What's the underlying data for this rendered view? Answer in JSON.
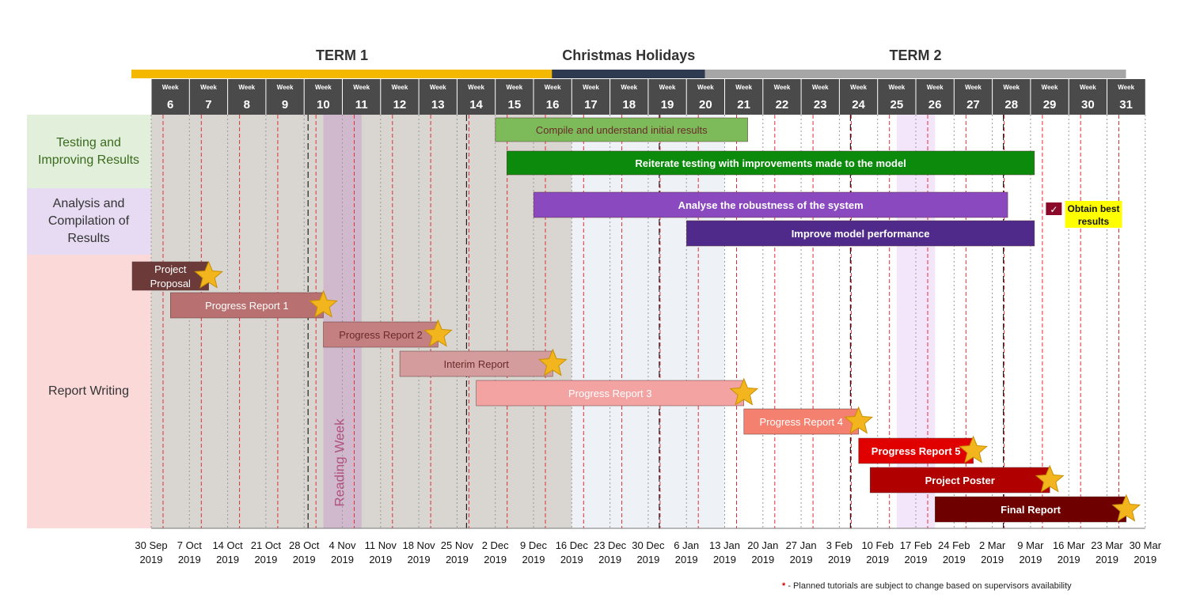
{
  "terms": [
    {
      "name": "TERM 1",
      "color": "#f5b800",
      "start": 6,
      "end": 16
    },
    {
      "name": "Christmas Holidays",
      "color": "#2e3a4f",
      "start": 17,
      "end": 20
    },
    {
      "name": "TERM 2",
      "color": "#a6a6a6",
      "start": 21,
      "end": 31
    }
  ],
  "week_prefix": "Week",
  "weeks": [
    6,
    7,
    8,
    9,
    10,
    11,
    12,
    13,
    14,
    15,
    16,
    17,
    18,
    19,
    20,
    21,
    22,
    23,
    24,
    25,
    26,
    27,
    28,
    29,
    30,
    31
  ],
  "date_ticks": [
    {
      "date": "30 Sep",
      "year": "2019"
    },
    {
      "date": "7 Oct",
      "year": "2019"
    },
    {
      "date": "14 Oct",
      "year": "2019"
    },
    {
      "date": "21 Oct",
      "year": "2019"
    },
    {
      "date": "28 Oct",
      "year": "2019"
    },
    {
      "date": "4 Nov",
      "year": "2019"
    },
    {
      "date": "11 Nov",
      "year": "2019"
    },
    {
      "date": "18 Nov",
      "year": "2019"
    },
    {
      "date": "25 Nov",
      "year": "2019"
    },
    {
      "date": "2 Dec",
      "year": "2019"
    },
    {
      "date": "9 Dec",
      "year": "2019"
    },
    {
      "date": "16 Dec",
      "year": "2019"
    },
    {
      "date": "23 Dec",
      "year": "2019"
    },
    {
      "date": "30 Dec",
      "year": "2019"
    },
    {
      "date": "6 Jan",
      "year": "2019"
    },
    {
      "date": "13 Jan",
      "year": "2019"
    },
    {
      "date": "20 Jan",
      "year": "2019"
    },
    {
      "date": "27 Jan",
      "year": "2019"
    },
    {
      "date": "3 Feb",
      "year": "2019"
    },
    {
      "date": "10 Feb",
      "year": "2019"
    },
    {
      "date": "17 Feb",
      "year": "2019"
    },
    {
      "date": "24 Feb",
      "year": "2019"
    },
    {
      "date": "2 Mar",
      "year": "2019"
    },
    {
      "date": "9 Mar",
      "year": "2019"
    },
    {
      "date": "16 Mar",
      "year": "2019"
    },
    {
      "date": "23 Mar",
      "year": "2019"
    },
    {
      "date": "30 Mar",
      "year": "2019"
    }
  ],
  "categories": [
    {
      "name": "Testing and Improving Results",
      "bg": "#e2efda",
      "color": "#3a6b1e"
    },
    {
      "name": "Analysis and Compilation of Results",
      "bg": "#e6dbf2",
      "color": "#333333"
    },
    {
      "name": "Report Writing",
      "bg": "#fcd9d9",
      "color": "#333333"
    }
  ],
  "reading_week": {
    "label": "Reading Week",
    "week": 11,
    "color": "#c9a2c9",
    "text_color": "#b0527f"
  },
  "highlight_week": {
    "week": 26,
    "color": "#f3e6fa"
  },
  "chart_data": {
    "type": "gantt",
    "x_unit": "week",
    "tasks": [
      {
        "name": "Compile and understand initial results",
        "category": "Testing and Improving Results",
        "start": 15.5,
        "end": 22.1,
        "color": "#7dbb5a",
        "milestone": false
      },
      {
        "name": "Reiterate testing with improvements made to the model",
        "category": "Testing and Improving Results",
        "start": 15.8,
        "end": 29.6,
        "color": "#0b8a0b",
        "milestone": false
      },
      {
        "name": "Analyse the robustness of the system",
        "category": "Analysis and Compilation of Results",
        "start": 16.5,
        "end": 28.9,
        "color": "#8b49c0",
        "milestone": false
      },
      {
        "name": "Improve model performance",
        "category": "Analysis and Compilation of Results",
        "start": 20.5,
        "end": 29.6,
        "color": "#4f2a8a",
        "milestone": false
      },
      {
        "name": "Obtain best results",
        "category": "Analysis and Compilation of Results",
        "start": 29.6,
        "end": 30.0,
        "color": "#8b0a2a",
        "milestone": true
      },
      {
        "name": "Project Proposal",
        "category": "Report Writing",
        "start": 6.0,
        "end": 8.0,
        "color": "#6d3a3a",
        "milestone": true
      },
      {
        "name": "Progress Report 1",
        "category": "Report Writing",
        "start": 7.0,
        "end": 11.0,
        "color": "#b97070",
        "milestone": true
      },
      {
        "name": "Progress Report 2",
        "category": "Report Writing",
        "start": 11.0,
        "end": 14.0,
        "color": "#c48080",
        "milestone": true
      },
      {
        "name": "Interim Report",
        "category": "Report Writing",
        "start": 13.0,
        "end": 17.0,
        "color": "#d49c9c",
        "milestone": true
      },
      {
        "name": "Progress Report 3",
        "category": "Report Writing",
        "start": 15.0,
        "end": 22.0,
        "color": "#f4a3a3",
        "milestone": true
      },
      {
        "name": "Progress Report 4",
        "category": "Report Writing",
        "start": 22.0,
        "end": 25.0,
        "color": "#f48070",
        "milestone": true
      },
      {
        "name": "Progress Report 5",
        "category": "Report Writing",
        "start": 25.0,
        "end": 28.0,
        "color": "#e00000",
        "milestone": true
      },
      {
        "name": "Project Poster",
        "category": "Report Writing",
        "start": 25.3,
        "end": 30.0,
        "color": "#b00000",
        "milestone": true
      },
      {
        "name": "Final Report",
        "category": "Report Writing",
        "start": 27.0,
        "end": 32.0,
        "color": "#6e0000",
        "milestone": true
      }
    ]
  },
  "footnote": {
    "marker": "*",
    "text": " - Planned tutorials are subject to change based on supervisors availability"
  }
}
